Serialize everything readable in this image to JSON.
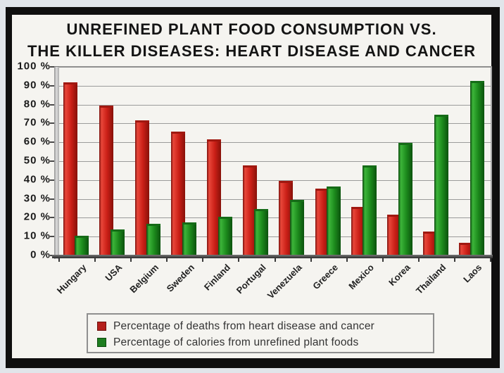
{
  "title": {
    "line1": "UNREFINED PLANT FOOD CONSUMPTION VS.",
    "line2": "THE KILLER DISEASES: HEART DISEASE AND CANCER"
  },
  "chart_data": {
    "type": "bar",
    "title": "Unrefined plant food consumption vs. the killer diseases: heart disease and cancer",
    "categories": [
      "Hungary",
      "USA",
      "Belgium",
      "Sweden",
      "Finland",
      "Portugal",
      "Venezuela",
      "Greece",
      "Mexico",
      "Korea",
      "Thailand",
      "Laos"
    ],
    "series": [
      {
        "name": "Percentage of deaths from heart disease and cancer",
        "color": "#c41e16",
        "values": [
          92,
          80,
          72,
          66,
          62,
          48,
          40,
          36,
          26,
          22,
          13,
          7
        ]
      },
      {
        "name": "Percentage of calories from unrefined plant foods",
        "color": "#1e8b1e",
        "values": [
          11,
          14,
          17,
          18,
          21,
          25,
          30,
          37,
          48,
          60,
          75,
          93
        ]
      }
    ],
    "ylim": [
      0,
      100
    ],
    "ytick_labels": [
      "100 %",
      "90 %",
      "80 %",
      "70 %",
      "60 %",
      "50 %",
      "40 %",
      "30 %",
      "20 %",
      "10 %",
      "0 %"
    ],
    "grid": true,
    "legend_position": "bottom"
  }
}
